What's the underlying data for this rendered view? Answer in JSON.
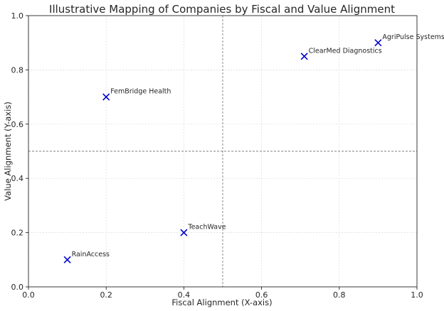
{
  "chart_data": {
    "type": "scatter",
    "title": "Illustrative Mapping of Companies by Fiscal and Value Alignment",
    "xlabel": "Fiscal Alignment (X-axis)",
    "ylabel": "Value Alignment (Y-axis)",
    "xlim": [
      0,
      1
    ],
    "ylim": [
      0,
      1
    ],
    "xticks": [
      "0.0",
      "0.2",
      "0.4",
      "0.6",
      "0.8",
      "1.0"
    ],
    "yticks": [
      "0.0",
      "0.2",
      "0.4",
      "0.6",
      "0.8",
      "1.0"
    ],
    "grid": true,
    "reference_lines": {
      "x": 0.5,
      "y": 0.5,
      "style": "dashed"
    },
    "marker": "x",
    "marker_color": "#0000cc",
    "points": [
      {
        "label": "AgriPulse Systems",
        "x": 0.9,
        "y": 0.9
      },
      {
        "label": "ClearMed Diagnostics",
        "x": 0.71,
        "y": 0.85
      },
      {
        "label": "FemBridge Health",
        "x": 0.2,
        "y": 0.7
      },
      {
        "label": "TeachWave",
        "x": 0.4,
        "y": 0.2
      },
      {
        "label": "RainAccess",
        "x": 0.1,
        "y": 0.1
      }
    ]
  }
}
